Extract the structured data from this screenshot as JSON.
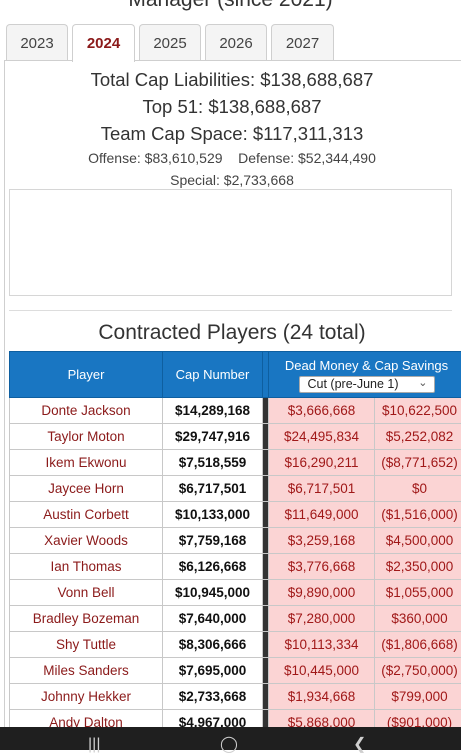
{
  "page": {
    "heading": "Manager (since 2021)"
  },
  "tabs": [
    {
      "label": "2023",
      "active": false
    },
    {
      "label": "2024",
      "active": true
    },
    {
      "label": "2025",
      "active": false
    },
    {
      "label": "2026",
      "active": false
    },
    {
      "label": "2027",
      "active": false
    }
  ],
  "summary": {
    "total_cap": "Total Cap Liabilities: $138,688,687",
    "top51": "Top 51: $138,688,687",
    "cap_space": "Team Cap Space: $117,311,313",
    "offense": "Offense: $83,610,529",
    "defense": "Defense: $52,344,490",
    "special": "Special: $2,733,668"
  },
  "section": {
    "title": "Contracted Players (24 total)"
  },
  "table": {
    "headers": {
      "player": "Player",
      "cap_number": "Cap Number",
      "dead_savings": "Dead Money & Cap Savings",
      "cut_option": "Cut (pre-June 1)"
    },
    "rows": [
      {
        "player": "Donte Jackson",
        "cap": "$14,289,168",
        "dead": "$3,666,668",
        "savings": "$10,622,500"
      },
      {
        "player": "Taylor Moton",
        "cap": "$29,747,916",
        "dead": "$24,495,834",
        "savings": "$5,252,082"
      },
      {
        "player": "Ikem Ekwonu",
        "cap": "$7,518,559",
        "dead": "$16,290,211",
        "savings": "($8,771,652)"
      },
      {
        "player": "Jaycee Horn",
        "cap": "$6,717,501",
        "dead": "$6,717,501",
        "savings": "$0"
      },
      {
        "player": "Austin Corbett",
        "cap": "$10,133,000",
        "dead": "$11,649,000",
        "savings": "($1,516,000)"
      },
      {
        "player": "Xavier Woods",
        "cap": "$7,759,168",
        "dead": "$3,259,168",
        "savings": "$4,500,000"
      },
      {
        "player": "Ian Thomas",
        "cap": "$6,126,668",
        "dead": "$3,776,668",
        "savings": "$2,350,000"
      },
      {
        "player": "Vonn Bell",
        "cap": "$10,945,000",
        "dead": "$9,890,000",
        "savings": "$1,055,000"
      },
      {
        "player": "Bradley Bozeman",
        "cap": "$7,640,000",
        "dead": "$7,280,000",
        "savings": "$360,000"
      },
      {
        "player": "Shy Tuttle",
        "cap": "$8,306,666",
        "dead": "$10,113,334",
        "savings": "($1,806,668)"
      },
      {
        "player": "Miles Sanders",
        "cap": "$7,695,000",
        "dead": "$10,445,000",
        "savings": "($2,750,000)"
      },
      {
        "player": "Johnny Hekker",
        "cap": "$2,733,668",
        "dead": "$1,934,668",
        "savings": "$799,000"
      },
      {
        "player": "Andy Dalton",
        "cap": "$4,967,000",
        "dead": "$5,868,000",
        "savings": "($901,000)"
      }
    ]
  },
  "navbar": {
    "icons": [
      "recent-apps-icon",
      "home-icon",
      "back-icon"
    ]
  }
}
